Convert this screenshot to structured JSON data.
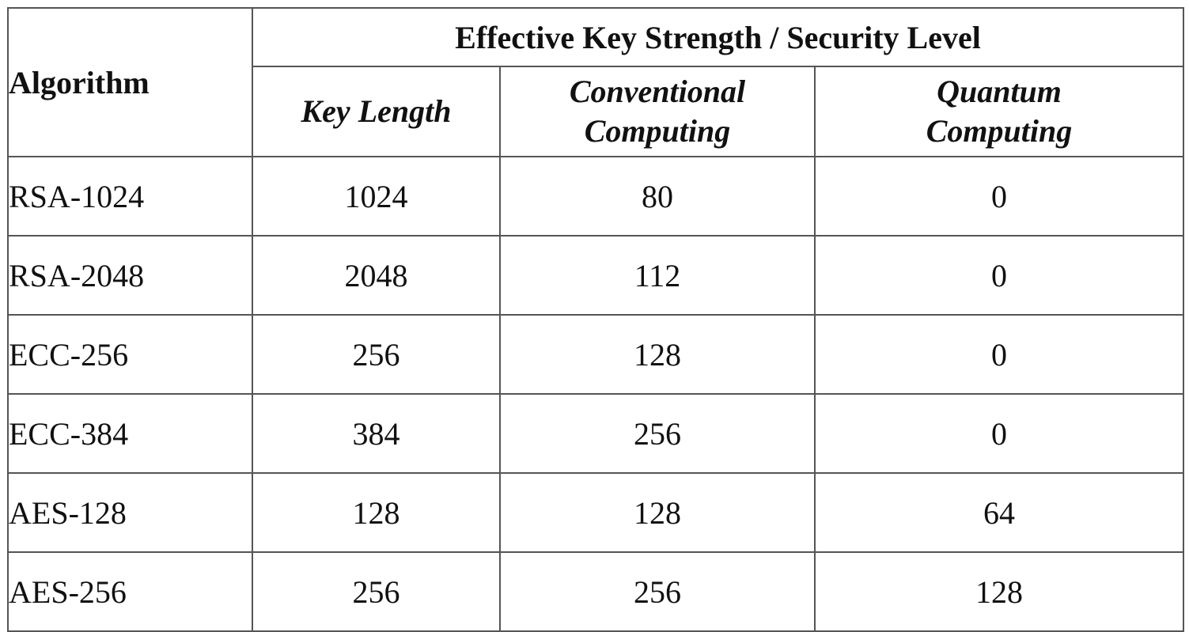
{
  "table": {
    "header": {
      "algorithm": "Algorithm",
      "group": "Effective Key Strength / Security Level",
      "key_length": "Key Length",
      "conventional": [
        "Conventional",
        "Computing"
      ],
      "quantum": [
        "Quantum",
        "Computing"
      ]
    },
    "rows": [
      {
        "algorithm": "RSA-1024",
        "key_length": "1024",
        "conventional": "80",
        "quantum": "0"
      },
      {
        "algorithm": "RSA-2048",
        "key_length": "2048",
        "conventional": "112",
        "quantum": "0"
      },
      {
        "algorithm": "ECC-256",
        "key_length": "256",
        "conventional": "128",
        "quantum": "0"
      },
      {
        "algorithm": "ECC-384",
        "key_length": "384",
        "conventional": "256",
        "quantum": "0"
      },
      {
        "algorithm": "AES-128",
        "key_length": "128",
        "conventional": "128",
        "quantum": "64"
      },
      {
        "algorithm": "AES-256",
        "key_length": "256",
        "conventional": "256",
        "quantum": "128"
      }
    ]
  }
}
